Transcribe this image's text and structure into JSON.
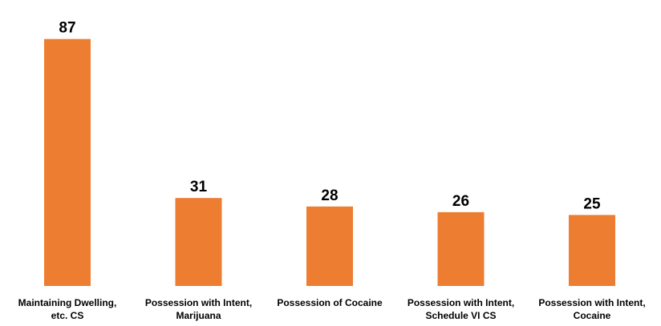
{
  "chart_data": {
    "type": "bar",
    "title": "",
    "xlabel": "",
    "ylabel": "",
    "categories": [
      [
        "Maintaining Dwelling,",
        "etc. CS"
      ],
      [
        "Possession with Intent,",
        "Marijuana"
      ],
      [
        "Possession of Cocaine"
      ],
      [
        "Possession with Intent,",
        "Schedule VI CS"
      ],
      [
        "Possession with Intent,",
        "Cocaine"
      ]
    ],
    "values": [
      87,
      31,
      28,
      26,
      25
    ],
    "ylim": [
      0,
      92
    ],
    "grid": false,
    "legend": "none",
    "bar_color": "#ED7D31",
    "data_labels": true
  }
}
